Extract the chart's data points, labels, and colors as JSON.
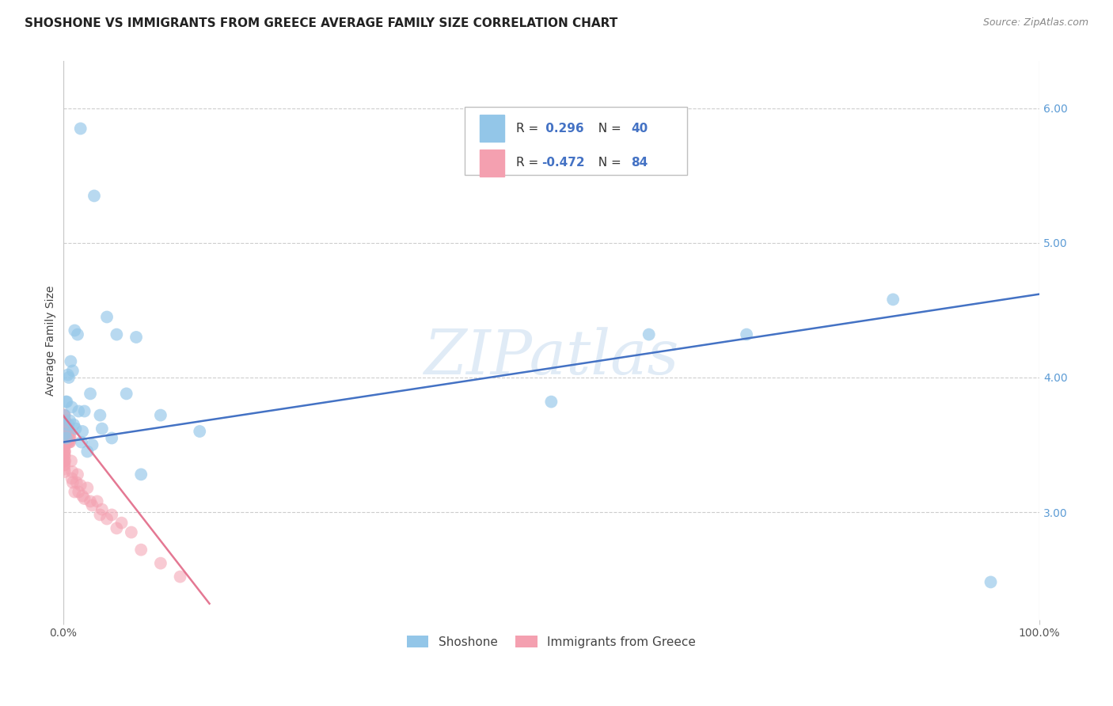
{
  "title": "SHOSHONE VS IMMIGRANTS FROM GREECE AVERAGE FAMILY SIZE CORRELATION CHART",
  "source": "Source: ZipAtlas.com",
  "ylabel": "Average Family Size",
  "watermark": "ZIPatlas",
  "xlim": [
    0,
    100
  ],
  "ylim": [
    2.2,
    6.35
  ],
  "yticks": [
    3.0,
    4.0,
    5.0,
    6.0
  ],
  "xticks": [
    0,
    100
  ],
  "xtick_labels": [
    "0.0%",
    "100.0%"
  ],
  "grid_color": "#c8c8c8",
  "background_color": "#ffffff",
  "shoshone_color": "#93C6E8",
  "shoshone_line_color": "#4472C4",
  "greece_color": "#F4A0B0",
  "greece_line_color": "#E06080",
  "shoshone_x": [
    1.8,
    3.2,
    4.5,
    1.2,
    1.5,
    0.8,
    1.0,
    0.5,
    0.6,
    2.8,
    5.5,
    7.5,
    0.3,
    0.4,
    0.9,
    1.6,
    2.2,
    3.8,
    0.7,
    1.1,
    4.0,
    6.5,
    10.0,
    14.0,
    0.2,
    0.35,
    1.9,
    3.0,
    2.5,
    8.0,
    0.15,
    0.55,
    1.3,
    2.0,
    5.0,
    50.0,
    70.0,
    85.0,
    60.0,
    95.0
  ],
  "shoshone_y": [
    5.85,
    5.35,
    4.45,
    4.35,
    4.32,
    4.12,
    4.05,
    4.02,
    4.0,
    3.88,
    4.32,
    4.3,
    3.82,
    3.82,
    3.78,
    3.75,
    3.75,
    3.72,
    3.68,
    3.65,
    3.62,
    3.88,
    3.72,
    3.6,
    3.58,
    3.55,
    3.52,
    3.5,
    3.45,
    3.28,
    3.72,
    3.65,
    3.62,
    3.6,
    3.55,
    3.82,
    4.32,
    4.58,
    4.32,
    2.48
  ],
  "shoshone_trend_x": [
    0,
    100
  ],
  "shoshone_trend_y": [
    3.52,
    4.62
  ],
  "greece_x": [
    0.08,
    0.12,
    0.15,
    0.18,
    0.2,
    0.22,
    0.25,
    0.28,
    0.3,
    0.32,
    0.35,
    0.38,
    0.4,
    0.42,
    0.45,
    0.48,
    0.5,
    0.52,
    0.55,
    0.58,
    0.6,
    0.62,
    0.65,
    0.68,
    0.7,
    0.72,
    0.75,
    0.08,
    0.1,
    0.12,
    0.15,
    0.17,
    0.19,
    0.22,
    0.24,
    0.27,
    0.29,
    0.32,
    0.34,
    0.08,
    0.1,
    0.12,
    0.14,
    0.16,
    0.18,
    0.2,
    0.22,
    0.08,
    0.1,
    0.12,
    0.14,
    0.16,
    0.18,
    1.5,
    2.5,
    3.5,
    5.0,
    7.0,
    1.0,
    2.0,
    4.0,
    6.0,
    0.9,
    1.2,
    3.0,
    0.85,
    1.8,
    2.8,
    4.5,
    0.95,
    1.4,
    2.2,
    3.8,
    5.5,
    1.6,
    8.0,
    10.0,
    12.0,
    0.08,
    0.08,
    0.1,
    0.1,
    0.12,
    0.15
  ],
  "greece_y": [
    3.62,
    3.58,
    3.65,
    3.6,
    3.55,
    3.68,
    3.6,
    3.55,
    3.62,
    3.58,
    3.52,
    3.6,
    3.55,
    3.62,
    3.58,
    3.52,
    3.55,
    3.62,
    3.58,
    3.52,
    3.55,
    3.6,
    3.52,
    3.55,
    3.58,
    3.52,
    3.55,
    3.72,
    3.68,
    3.72,
    3.68,
    3.72,
    3.65,
    3.68,
    3.62,
    3.65,
    3.62,
    3.65,
    3.6,
    3.48,
    3.45,
    3.48,
    3.42,
    3.45,
    3.42,
    3.45,
    3.38,
    3.38,
    3.35,
    3.38,
    3.32,
    3.35,
    3.3,
    3.28,
    3.18,
    3.08,
    2.98,
    2.85,
    3.22,
    3.12,
    3.02,
    2.92,
    3.25,
    3.15,
    3.05,
    3.38,
    3.2,
    3.08,
    2.95,
    3.3,
    3.22,
    3.1,
    2.98,
    2.88,
    3.15,
    2.72,
    2.62,
    2.52,
    3.55,
    3.52,
    3.58,
    3.55,
    3.62,
    3.65
  ],
  "greece_trend_x": [
    0,
    15
  ],
  "greece_trend_y": [
    3.72,
    2.32
  ],
  "R_shoshone": 0.296,
  "N_shoshone": 40,
  "R_greece": -0.472,
  "N_greece": 84,
  "title_fontsize": 11,
  "axis_label_fontsize": 10,
  "tick_fontsize": 10,
  "source_fontsize": 9
}
